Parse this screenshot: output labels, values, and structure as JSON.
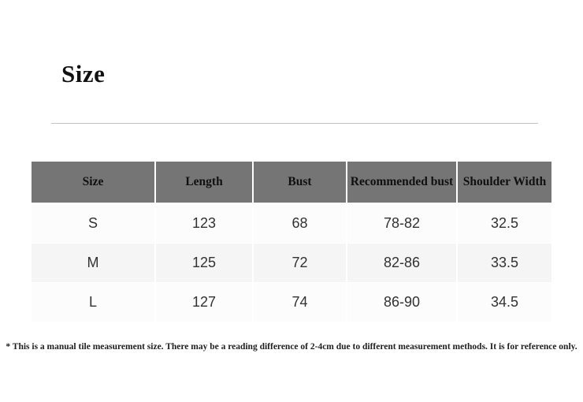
{
  "page": {
    "title": "Size"
  },
  "table": {
    "headers": [
      "Size",
      "Length",
      "Bust",
      "Recommended bust",
      "Shoulder Width"
    ],
    "rows": [
      {
        "cells": [
          "S",
          "123",
          "68",
          "78-82",
          "32.5"
        ]
      },
      {
        "cells": [
          "M",
          "125",
          "72",
          "82-86",
          "33.5"
        ]
      },
      {
        "cells": [
          "L",
          "127",
          "74",
          "86-90",
          "34.5"
        ]
      }
    ]
  },
  "footnote": "* This is a manual tile measurement size. There may be a reading difference of 2-4cm due to different measurement methods. It is for reference only.",
  "colors": {
    "header_bg": "#757575",
    "row_shade_bg": "#f5f5f5",
    "row_light_bg": "#fcfcfc",
    "divider": "#c4c4c4"
  }
}
